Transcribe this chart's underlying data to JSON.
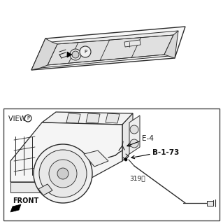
{
  "bg_color": "#ffffff",
  "line_color": "#2a2a2a",
  "text_color": "#111111",
  "fig_w": 3.19,
  "fig_h": 3.2,
  "label_E4": "E-4",
  "label_B173": "B-1-73",
  "label_319B": "319Ⓑ",
  "label_front": "FRONT",
  "label_view": "VIEW ",
  "label_P": "P"
}
